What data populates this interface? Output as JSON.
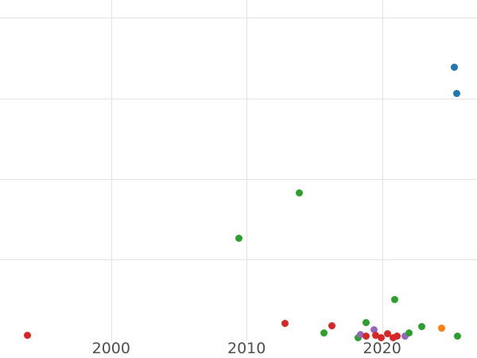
{
  "chart_data": {
    "type": "scatter",
    "title": "",
    "xlabel": "",
    "ylabel": "",
    "legend": "none",
    "grid": true,
    "background": "#ffffff",
    "gridline_color": "#e4e4e4",
    "tick_label_color": "#4f4f4f",
    "x_tick_labels": [
      "2000",
      "2010",
      "2020"
    ],
    "x_ticks": [
      2000,
      2010,
      2020
    ],
    "y_gridlines": [
      1,
      2,
      3,
      4
    ],
    "xlim": [
      1991.8,
      2027.0
    ],
    "ylim": [
      -0.22,
      4.22
    ],
    "y_unit_note": "y estimated in horizontal-gridline units; no y-axis tick labels visible in image",
    "palette": {
      "blue": "#1f77b4",
      "orange": "#ff7f0e",
      "green": "#2ca02c",
      "red": "#d62728",
      "purple": "#9467bd"
    },
    "points": [
      {
        "x": 1993.85,
        "y": 0.06,
        "series": "red"
      },
      {
        "x": 2012.8,
        "y": 0.21,
        "series": "red"
      },
      {
        "x": 2009.45,
        "y": 1.27,
        "series": "green"
      },
      {
        "x": 2013.9,
        "y": 1.83,
        "series": "green"
      },
      {
        "x": 2015.7,
        "y": 0.09,
        "series": "green"
      },
      {
        "x": 2016.3,
        "y": 0.18,
        "series": "red"
      },
      {
        "x": 2018.2,
        "y": 0.035,
        "series": "green"
      },
      {
        "x": 2018.4,
        "y": 0.07,
        "series": "purple"
      },
      {
        "x": 2018.8,
        "y": 0.05,
        "series": "red"
      },
      {
        "x": 2019.4,
        "y": 0.13,
        "series": "purple"
      },
      {
        "x": 2019.5,
        "y": 0.06,
        "series": "red"
      },
      {
        "x": 2019.9,
        "y": 0.035,
        "series": "red"
      },
      {
        "x": 2020.4,
        "y": 0.085,
        "series": "red"
      },
      {
        "x": 2020.8,
        "y": 0.035,
        "series": "red"
      },
      {
        "x": 2021.1,
        "y": 0.055,
        "series": "red"
      },
      {
        "x": 2018.8,
        "y": 0.22,
        "series": "green"
      },
      {
        "x": 2020.9,
        "y": 0.51,
        "series": "green"
      },
      {
        "x": 2021.7,
        "y": 0.055,
        "series": "purple"
      },
      {
        "x": 2022.0,
        "y": 0.09,
        "series": "green"
      },
      {
        "x": 2022.9,
        "y": 0.17,
        "series": "green"
      },
      {
        "x": 2024.4,
        "y": 0.15,
        "series": "orange"
      },
      {
        "x": 2025.55,
        "y": 0.05,
        "series": "green"
      },
      {
        "x": 2025.3,
        "y": 3.39,
        "series": "blue"
      },
      {
        "x": 2025.5,
        "y": 3.06,
        "series": "blue"
      }
    ]
  }
}
